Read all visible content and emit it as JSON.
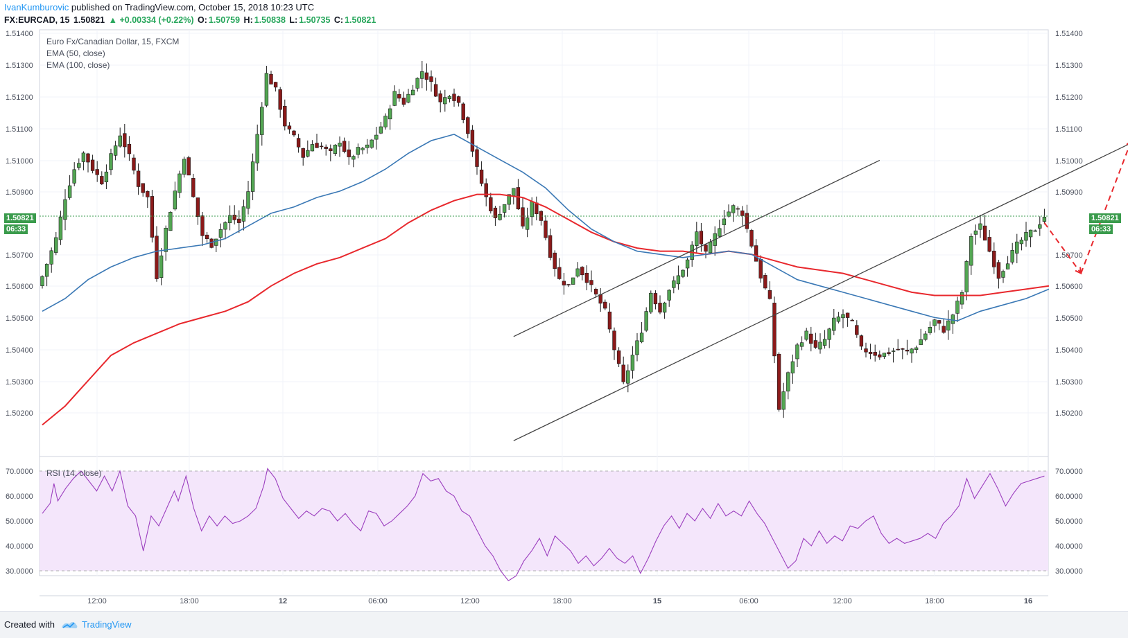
{
  "header": {
    "author": "IvanKumburovic",
    "published": "published on TradingView.com, October 15, 2018 10:23 UTC"
  },
  "quote": {
    "symbol": "FX:EURCAD, 15",
    "last": "1.50821",
    "change": "▲ +0.00334 (+0.22%)",
    "open_label": "O:",
    "open": "1.50759",
    "high_label": "H:",
    "high": "1.50838",
    "low_label": "L:",
    "low": "1.50735",
    "close_label": "C:",
    "close": "1.50821"
  },
  "legend": {
    "title": "Euro Fx/Canadian Dollar, 15, FXCM",
    "ema50": "EMA (50, close)",
    "ema100": "EMA (100, close)",
    "rsi": "RSI (14, close)"
  },
  "price_tag": {
    "value": "1.50821",
    "countdown": "06:33"
  },
  "footer": {
    "created": "Created with",
    "brand": "TradingView"
  },
  "colors": {
    "up": "#53a653",
    "down": "#8b1a1a",
    "ema50": "#3a78b5",
    "ema100": "#e8282d",
    "rsi_line": "#9c3fbf",
    "rsi_band": "#f4e6fb",
    "last_line": "#3a9b4c",
    "grid": "#f0f3fa",
    "arrow": "#e8282d"
  },
  "chart_data": [
    {
      "type": "candlestick",
      "title": "Euro Fx/Canadian Dollar, 15, FXCM",
      "y_ticks": [
        "1.51400",
        "1.51300",
        "1.51200",
        "1.51100",
        "1.51000",
        "1.50900",
        "1.50700",
        "1.50600",
        "1.50500",
        "1.50400",
        "1.50300",
        "1.50200"
      ],
      "ylim": [
        1.5111,
        1.5142
      ],
      "x_ticks": [
        "12:00",
        "18:00",
        "12",
        "06:00",
        "12:00",
        "18:00",
        "15",
        "06:00",
        "12:00",
        "18:00",
        "16"
      ],
      "last_price": 1.50821,
      "close_path": [
        [
          0,
          1.5063
        ],
        [
          3,
          1.5075
        ],
        [
          5,
          1.5088
        ],
        [
          7,
          1.5097
        ],
        [
          9,
          1.5102
        ],
        [
          11,
          1.5097
        ],
        [
          13,
          1.5093
        ],
        [
          15,
          1.5101
        ],
        [
          17,
          1.5108
        ],
        [
          19,
          1.5101
        ],
        [
          21,
          1.5092
        ],
        [
          23,
          1.5088
        ],
        [
          25,
          1.5063
        ],
        [
          27,
          1.5078
        ],
        [
          29,
          1.509
        ],
        [
          31,
          1.5101
        ],
        [
          33,
          1.5088
        ],
        [
          35,
          1.5076
        ],
        [
          37,
          1.5073
        ],
        [
          39,
          1.5078
        ],
        [
          41,
          1.5082
        ],
        [
          43,
          1.508
        ],
        [
          45,
          1.509
        ],
        [
          47,
          1.5108
        ],
        [
          49,
          1.5127
        ],
        [
          51,
          1.5122
        ],
        [
          53,
          1.5111
        ],
        [
          55,
          1.5107
        ],
        [
          57,
          1.5101
        ],
        [
          59,
          1.5105
        ],
        [
          61,
          1.5104
        ],
        [
          63,
          1.5102
        ],
        [
          65,
          1.5106
        ],
        [
          67,
          1.51
        ],
        [
          69,
          1.5103
        ],
        [
          71,
          1.5104
        ],
        [
          73,
          1.5108
        ],
        [
          75,
          1.5113
        ],
        [
          77,
          1.5121
        ],
        [
          79,
          1.5118
        ],
        [
          81,
          1.5123
        ],
        [
          83,
          1.5128
        ],
        [
          85,
          1.5124
        ],
        [
          87,
          1.5118
        ],
        [
          89,
          1.5121
        ],
        [
          91,
          1.5118
        ],
        [
          93,
          1.5109
        ],
        [
          95,
          1.5097
        ],
        [
          97,
          1.5088
        ],
        [
          99,
          1.5081
        ],
        [
          101,
          1.5086
        ],
        [
          103,
          1.5091
        ],
        [
          105,
          1.5078
        ],
        [
          107,
          1.5086
        ],
        [
          109,
          1.5081
        ],
        [
          111,
          1.507
        ],
        [
          113,
          1.5062
        ],
        [
          115,
          1.506
        ],
        [
          117,
          1.5066
        ],
        [
          119,
          1.5062
        ],
        [
          121,
          1.5057
        ],
        [
          123,
          1.5052
        ],
        [
          125,
          1.504
        ],
        [
          127,
          1.5029
        ],
        [
          129,
          1.5038
        ],
        [
          131,
          1.5046
        ],
        [
          133,
          1.5058
        ],
        [
          135,
          1.5052
        ],
        [
          137,
          1.5059
        ],
        [
          139,
          1.5063
        ],
        [
          141,
          1.5068
        ],
        [
          143,
          1.5077
        ],
        [
          145,
          1.507
        ],
        [
          147,
          1.5076
        ],
        [
          149,
          1.5082
        ],
        [
          151,
          1.5085
        ],
        [
          153,
          1.5083
        ],
        [
          155,
          1.5073
        ],
        [
          157,
          1.5063
        ],
        [
          159,
          1.5055
        ],
        [
          161,
          1.5021
        ],
        [
          163,
          1.5032
        ],
        [
          165,
          1.5041
        ],
        [
          167,
          1.5045
        ],
        [
          169,
          1.504
        ],
        [
          171,
          1.5043
        ],
        [
          173,
          1.5049
        ],
        [
          175,
          1.5051
        ],
        [
          177,
          1.5048
        ],
        [
          179,
          1.504
        ],
        [
          181,
          1.5039
        ],
        [
          183,
          1.5038
        ],
        [
          185,
          1.5039
        ],
        [
          187,
          1.504
        ],
        [
          189,
          1.5039
        ],
        [
          191,
          1.5041
        ],
        [
          193,
          1.5045
        ],
        [
          195,
          1.5049
        ],
        [
          197,
          1.5046
        ],
        [
          199,
          1.5051
        ],
        [
          201,
          1.5058
        ],
        [
          203,
          1.5076
        ],
        [
          205,
          1.5079
        ],
        [
          207,
          1.5071
        ],
        [
          209,
          1.5063
        ],
        [
          211,
          1.5068
        ],
        [
          213,
          1.5073
        ],
        [
          215,
          1.5076
        ],
        [
          217,
          1.5078
        ],
        [
          219,
          1.50821
        ]
      ],
      "ema50": [
        [
          0,
          1.5052
        ],
        [
          5,
          1.5056
        ],
        [
          10,
          1.5062
        ],
        [
          15,
          1.5066
        ],
        [
          20,
          1.5069
        ],
        [
          25,
          1.5071
        ],
        [
          30,
          1.5072
        ],
        [
          35,
          1.5073
        ],
        [
          40,
          1.5075
        ],
        [
          45,
          1.5079
        ],
        [
          50,
          1.5083
        ],
        [
          55,
          1.5085
        ],
        [
          60,
          1.5088
        ],
        [
          65,
          1.509
        ],
        [
          70,
          1.5093
        ],
        [
          75,
          1.5097
        ],
        [
          80,
          1.5102
        ],
        [
          85,
          1.5106
        ],
        [
          90,
          1.5108
        ],
        [
          95,
          1.5104
        ],
        [
          100,
          1.51
        ],
        [
          105,
          1.5096
        ],
        [
          110,
          1.5091
        ],
        [
          115,
          1.5084
        ],
        [
          120,
          1.5078
        ],
        [
          125,
          1.5074
        ],
        [
          130,
          1.5071
        ],
        [
          135,
          1.507
        ],
        [
          140,
          1.5069
        ],
        [
          145,
          1.507
        ],
        [
          150,
          1.5071
        ],
        [
          155,
          1.507
        ],
        [
          160,
          1.5066
        ],
        [
          165,
          1.5062
        ],
        [
          170,
          1.506
        ],
        [
          175,
          1.5058
        ],
        [
          180,
          1.5056
        ],
        [
          185,
          1.5054
        ],
        [
          190,
          1.5052
        ],
        [
          195,
          1.505
        ],
        [
          200,
          1.5049
        ],
        [
          205,
          1.5052
        ],
        [
          210,
          1.5054
        ],
        [
          215,
          1.5056
        ],
        [
          220,
          1.5059
        ]
      ],
      "ema100": [
        [
          0,
          1.5016
        ],
        [
          5,
          1.5022
        ],
        [
          10,
          1.503
        ],
        [
          15,
          1.5038
        ],
        [
          20,
          1.5042
        ],
        [
          25,
          1.5045
        ],
        [
          30,
          1.5048
        ],
        [
          35,
          1.505
        ],
        [
          40,
          1.5052
        ],
        [
          45,
          1.5055
        ],
        [
          50,
          1.506
        ],
        [
          55,
          1.5064
        ],
        [
          60,
          1.5067
        ],
        [
          65,
          1.5069
        ],
        [
          70,
          1.5072
        ],
        [
          75,
          1.5075
        ],
        [
          80,
          1.508
        ],
        [
          85,
          1.5084
        ],
        [
          90,
          1.5087
        ],
        [
          95,
          1.5089
        ],
        [
          100,
          1.5089
        ],
        [
          105,
          1.5088
        ],
        [
          110,
          1.5085
        ],
        [
          115,
          1.5081
        ],
        [
          120,
          1.5077
        ],
        [
          125,
          1.5074
        ],
        [
          130,
          1.5072
        ],
        [
          135,
          1.5071
        ],
        [
          140,
          1.5071
        ],
        [
          145,
          1.507
        ],
        [
          150,
          1.5071
        ],
        [
          155,
          1.507
        ],
        [
          160,
          1.5068
        ],
        [
          165,
          1.5066
        ],
        [
          170,
          1.5065
        ],
        [
          175,
          1.5064
        ],
        [
          180,
          1.5062
        ],
        [
          185,
          1.506
        ],
        [
          190,
          1.5058
        ],
        [
          195,
          1.5057
        ],
        [
          200,
          1.5057
        ],
        [
          205,
          1.5057
        ],
        [
          210,
          1.5058
        ],
        [
          215,
          1.5059
        ],
        [
          220,
          1.506
        ]
      ],
      "channel_upper": [
        [
          103,
          1.5044
        ],
        [
          179,
          1.5097
        ]
      ],
      "channel_lower": [
        [
          103,
          1.5011
        ],
        [
          219,
          1.5092
        ]
      ],
      "forecast_arrows": [
        [
          [
            219,
            1.508
          ],
          [
            227,
            1.5064
          ]
        ],
        [
          [
            227,
            1.5064
          ],
          [
            238,
            1.5106
          ]
        ]
      ]
    },
    {
      "type": "line",
      "title": "RSI (14, close)",
      "y_ticks": [
        "70.0000",
        "60.0000",
        "50.0000",
        "40.0000",
        "30.0000"
      ],
      "ylim": [
        22,
        74
      ],
      "band": [
        30,
        70
      ],
      "values": [
        [
          0,
          53
        ],
        [
          2,
          57
        ],
        [
          3,
          65
        ],
        [
          4,
          58
        ],
        [
          6,
          63
        ],
        [
          8,
          67
        ],
        [
          10,
          70
        ],
        [
          12,
          66
        ],
        [
          14,
          62
        ],
        [
          16,
          68
        ],
        [
          18,
          62
        ],
        [
          20,
          70
        ],
        [
          22,
          56
        ],
        [
          24,
          52
        ],
        [
          26,
          38
        ],
        [
          28,
          52
        ],
        [
          30,
          48
        ],
        [
          32,
          55
        ],
        [
          34,
          62
        ],
        [
          35,
          58
        ],
        [
          37,
          68
        ],
        [
          39,
          55
        ],
        [
          41,
          46
        ],
        [
          43,
          52
        ],
        [
          45,
          48
        ],
        [
          47,
          52
        ],
        [
          49,
          49
        ],
        [
          51,
          50
        ],
        [
          53,
          52
        ],
        [
          55,
          55
        ],
        [
          57,
          64
        ],
        [
          58,
          71
        ],
        [
          60,
          67
        ],
        [
          62,
          59
        ],
        [
          64,
          55
        ],
        [
          66,
          51
        ],
        [
          68,
          54
        ],
        [
          70,
          52
        ],
        [
          72,
          55
        ],
        [
          74,
          54
        ],
        [
          76,
          50
        ],
        [
          78,
          53
        ],
        [
          80,
          49
        ],
        [
          82,
          46
        ],
        [
          84,
          54
        ],
        [
          86,
          53
        ],
        [
          88,
          48
        ],
        [
          90,
          50
        ],
        [
          92,
          53
        ],
        [
          94,
          56
        ],
        [
          96,
          60
        ],
        [
          98,
          69
        ],
        [
          100,
          66
        ],
        [
          102,
          67
        ],
        [
          104,
          62
        ],
        [
          106,
          60
        ],
        [
          108,
          54
        ],
        [
          110,
          52
        ],
        [
          112,
          46
        ],
        [
          114,
          40
        ],
        [
          116,
          36
        ],
        [
          118,
          30
        ],
        [
          120,
          26
        ],
        [
          122,
          28
        ],
        [
          124,
          34
        ],
        [
          126,
          38
        ],
        [
          128,
          43
        ],
        [
          130,
          36
        ],
        [
          132,
          44
        ],
        [
          134,
          41
        ],
        [
          136,
          38
        ],
        [
          138,
          33
        ],
        [
          140,
          36
        ],
        [
          142,
          32
        ],
        [
          144,
          35
        ],
        [
          146,
          39
        ],
        [
          148,
          35
        ],
        [
          150,
          33
        ],
        [
          152,
          36
        ],
        [
          154,
          29
        ],
        [
          156,
          35
        ],
        [
          158,
          42
        ],
        [
          160,
          48
        ],
        [
          162,
          52
        ],
        [
          164,
          47
        ],
        [
          166,
          53
        ],
        [
          168,
          50
        ],
        [
          170,
          55
        ],
        [
          172,
          51
        ],
        [
          174,
          57
        ],
        [
          176,
          52
        ],
        [
          178,
          54
        ],
        [
          180,
          52
        ],
        [
          182,
          58
        ],
        [
          184,
          53
        ],
        [
          186,
          49
        ],
        [
          188,
          43
        ],
        [
          190,
          37
        ],
        [
          192,
          31
        ],
        [
          194,
          34
        ],
        [
          196,
          43
        ],
        [
          198,
          40
        ],
        [
          200,
          46
        ],
        [
          202,
          41
        ],
        [
          204,
          44
        ],
        [
          206,
          42
        ],
        [
          208,
          48
        ],
        [
          210,
          47
        ],
        [
          212,
          50
        ],
        [
          214,
          52
        ],
        [
          216,
          45
        ],
        [
          218,
          41
        ],
        [
          220,
          43
        ],
        [
          222,
          41
        ],
        [
          224,
          42
        ],
        [
          226,
          43
        ],
        [
          228,
          45
        ],
        [
          230,
          43
        ],
        [
          232,
          49
        ],
        [
          234,
          52
        ],
        [
          236,
          56
        ],
        [
          238,
          67
        ],
        [
          240,
          59
        ],
        [
          242,
          64
        ],
        [
          244,
          69
        ],
        [
          246,
          63
        ],
        [
          248,
          56
        ],
        [
          250,
          61
        ],
        [
          252,
          65
        ],
        [
          254,
          66
        ],
        [
          256,
          67
        ],
        [
          258,
          68
        ]
      ]
    }
  ]
}
